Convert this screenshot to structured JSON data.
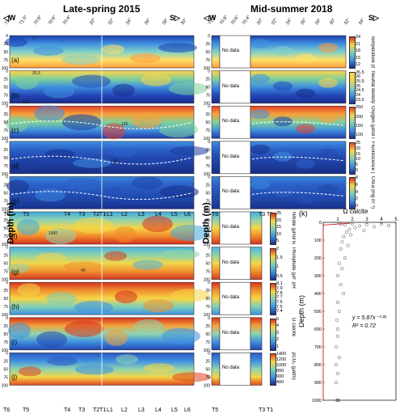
{
  "titles": {
    "left": "Late-spring 2015",
    "right": "Mid-summer 2018"
  },
  "compass": {
    "west": "W",
    "south": "S"
  },
  "left_top_axis": [
    "71.2°",
    "71.0°",
    "70.8°",
    "70.6°",
    "70.4°",
    "20°",
    "22°",
    "24°",
    "26°",
    "28°",
    "30°"
  ],
  "right_top_axis": [
    "71.0°",
    "70.8°",
    "70.6°",
    "70.4°",
    "20°",
    "22°",
    "24°",
    "26°",
    "28°",
    "30°",
    "32°",
    "34°"
  ],
  "depth_ticks": [
    "0",
    "25",
    "50",
    "75",
    "100"
  ],
  "panel_letters": [
    "(a)",
    "(b)",
    "(c)",
    "(d)",
    "(e)",
    "(f)",
    "(g)",
    "(h)",
    "(i)",
    "(j)"
  ],
  "depth_label": "Depth (m)",
  "stations_left": [
    "T6",
    "T5",
    "T4",
    "T3",
    "T2",
    "T1",
    "L1",
    "L2",
    "L3",
    "L4",
    "L5",
    "L6"
  ],
  "stations_right_mid": [
    "T5",
    "T3",
    "T1"
  ],
  "no_data": "No data",
  "colorbars": [
    {
      "label": "Temperature (degree C)",
      "ticks": [
        "24",
        "21",
        "18",
        "15",
        "12"
      ]
    },
    {
      "label": "Neutral density (kg m⁻³)",
      "ticks": [
        "26.5",
        "26",
        "25.5",
        "25",
        "24.5",
        "24",
        "23.5"
      ]
    },
    {
      "label": "Oxygen (µmol kg⁻¹)",
      "ticks": [
        "250",
        "200",
        "150",
        "100"
      ]
    },
    {
      "label": "Fluorescence (mg m⁻³)",
      "ticks": [
        "25",
        "20",
        "15",
        "10",
        "5",
        "0"
      ]
    },
    {
      "label": "Chl-a (mg m⁻³)",
      "ticks": [
        "8",
        "6",
        "4",
        "2",
        "0"
      ]
    },
    {
      "label": "Nitrate (µmol kg⁻¹)",
      "ticks": [
        "25",
        "20",
        "15",
        "10",
        "5"
      ]
    },
    {
      "label": "Phosphate (µmol kg⁻¹)",
      "ticks": [
        "2",
        "1.5",
        "1",
        "0.5"
      ]
    },
    {
      "label": "pH",
      "ticks": [
        "8.1",
        "7.9",
        "7.8",
        "7.7",
        "7.6",
        "7.5",
        "7.4"
      ]
    },
    {
      "label": "Ω calcite",
      "ticks": [
        "5",
        "4",
        "3",
        "2",
        "1"
      ]
    },
    {
      "label": "pCO₂ (µatm)",
      "ticks": [
        "1400",
        "1200",
        "1000",
        "800",
        "600",
        "400"
      ]
    }
  ],
  "contour_labels": [
    "17",
    "25.5",
    "200",
    "120",
    "20",
    "40",
    "1000"
  ],
  "panel_k": {
    "letter": "(k)",
    "xlabel": "Ω calcite",
    "ylabel": "Depth (m)",
    "equation": "y = 5.87x⁻⁰·²⁶",
    "r2": "R² = 0.72"
  },
  "chart_data": {
    "type": "scatter",
    "xlabel": "Ω calcite",
    "ylabel": "Depth (m)",
    "xlim": [
      0,
      5
    ],
    "ylim": [
      1000,
      0
    ],
    "x_ticks": [
      1,
      2,
      3,
      4,
      5
    ],
    "y_ticks": [
      0,
      100,
      200,
      300,
      400,
      500,
      600,
      700,
      800,
      900,
      1000
    ],
    "points": [
      [
        1.2,
        10
      ],
      [
        1.5,
        15
      ],
      [
        2.0,
        8
      ],
      [
        2.5,
        20
      ],
      [
        3.0,
        12
      ],
      [
        3.5,
        25
      ],
      [
        4.0,
        10
      ],
      [
        4.5,
        18
      ],
      [
        1.8,
        40
      ],
      [
        2.2,
        30
      ],
      [
        1.6,
        55
      ],
      [
        2.8,
        45
      ],
      [
        1.4,
        80
      ],
      [
        1.9,
        70
      ],
      [
        1.3,
        110
      ],
      [
        1.7,
        130
      ],
      [
        1.2,
        150
      ],
      [
        1.5,
        200
      ],
      [
        1.1,
        230
      ],
      [
        1.3,
        260
      ],
      [
        1.0,
        300
      ],
      [
        1.2,
        350
      ],
      [
        1.4,
        400
      ],
      [
        1.0,
        450
      ],
      [
        1.1,
        500
      ],
      [
        0.95,
        550
      ],
      [
        1.0,
        600
      ],
      [
        1.0,
        640
      ],
      [
        0.9,
        700
      ],
      [
        1.1,
        760
      ],
      [
        0.9,
        800
      ],
      [
        1.0,
        850
      ],
      [
        0.9,
        900
      ],
      [
        1.0,
        1000
      ],
      [
        0.95,
        1000
      ],
      [
        1.05,
        1000
      ]
    ],
    "fit": {
      "equation": "y = 5.87x^-0.26",
      "r2": 0.72
    }
  }
}
